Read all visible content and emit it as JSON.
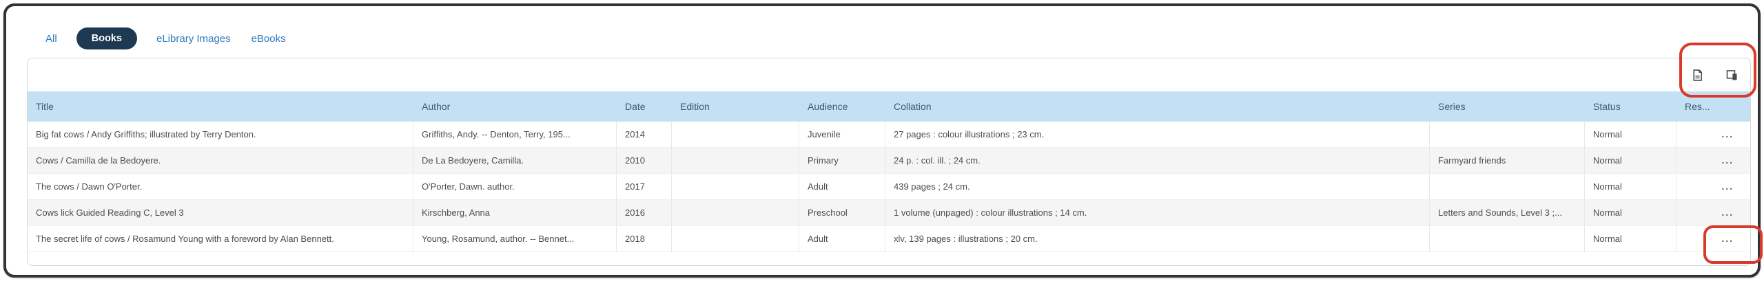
{
  "tabs": [
    {
      "label": "All",
      "active": false
    },
    {
      "label": "Books",
      "active": true
    },
    {
      "label": "eLibrary Images",
      "active": false
    },
    {
      "label": "eBooks",
      "active": false
    }
  ],
  "toolbar": {
    "icons": [
      {
        "name": "export-results-icon"
      },
      {
        "name": "copy-results-icon"
      }
    ]
  },
  "table": {
    "columns": [
      {
        "label": "Title"
      },
      {
        "label": "Author"
      },
      {
        "label": "Date"
      },
      {
        "label": "Edition"
      },
      {
        "label": "Audience"
      },
      {
        "label": "Collation"
      },
      {
        "label": "Series"
      },
      {
        "label": "Status"
      },
      {
        "label": "Res..."
      }
    ],
    "row_action_label": "...",
    "rows": [
      {
        "title": "Big fat cows / Andy Griffiths; illustrated by Terry Denton.",
        "author": "Griffiths, Andy. -- Denton, Terry, 195...",
        "date": "2014",
        "edition": "",
        "audience": "Juvenile",
        "collation": "27 pages : colour illustrations ; 23 cm.",
        "series": "",
        "status": "Normal"
      },
      {
        "title": "Cows / Camilla de la Bedoyere.",
        "author": "De La Bedoyere, Camilla.",
        "date": "2010",
        "edition": "",
        "audience": "Primary",
        "collation": "24 p. : col. ill. ; 24 cm.",
        "series": "Farmyard friends",
        "status": "Normal"
      },
      {
        "title": "The cows / Dawn O'Porter.",
        "author": "O'Porter, Dawn. author.",
        "date": "2017",
        "edition": "",
        "audience": "Adult",
        "collation": "439 pages ; 24 cm.",
        "series": "",
        "status": "Normal"
      },
      {
        "title": "Cows lick Guided Reading C, Level 3",
        "author": "Kirschberg, Anna",
        "date": "2016",
        "edition": "",
        "audience": "Preschool",
        "collation": "1 volume (unpaged) : colour illustrations ; 14 cm.",
        "series": "Letters and Sounds, Level 3 ;...",
        "status": "Normal"
      },
      {
        "title": "The secret life of cows / Rosamund Young with a foreword by Alan Bennett.",
        "author": "Young, Rosamund, author. -- Bennet...",
        "date": "2018",
        "edition": "",
        "audience": "Adult",
        "collation": "xlv, 139 pages : illustrations ; 20 cm.",
        "series": "",
        "status": "Normal"
      }
    ]
  },
  "annotations": [
    {
      "name": "red-highlight-toolbar-icons"
    },
    {
      "name": "red-highlight-last-row-actions"
    }
  ],
  "colors": {
    "header_background": "#c4e1f4",
    "header_text": "#3b5a72",
    "tab_link": "#2e7dbe",
    "tab_active_background": "#1e3952",
    "tab_active_text": "#ffffff",
    "row_alt_background": "#f5f5f5",
    "body_text": "#4d4d4d",
    "annotation_red": "#d93a2b",
    "frame_border": "#333333"
  }
}
